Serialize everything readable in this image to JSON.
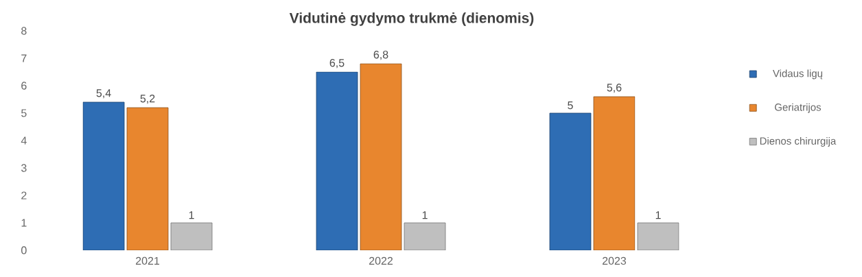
{
  "chart_data": {
    "type": "bar",
    "title": "Vidutinė gydymo trukmė (dienomis)",
    "categories": [
      "2021",
      "2022",
      "2023"
    ],
    "series": [
      {
        "name": "Vidaus ligų",
        "color": "#2e6db4",
        "values": [
          5.4,
          6.5,
          5
        ],
        "value_labels": [
          "5,4",
          "6,5",
          "5"
        ]
      },
      {
        "name": "Geriatrijos",
        "color": "#e8862e",
        "values": [
          5.2,
          6.8,
          5.6
        ],
        "value_labels": [
          "5,2",
          "6,8",
          "5,6"
        ]
      },
      {
        "name": "Dienos chirurgija",
        "color": "#bfbfbf",
        "values": [
          1,
          1,
          1
        ],
        "value_labels": [
          "1",
          "1",
          "1"
        ]
      }
    ],
    "ylim": [
      0,
      8
    ],
    "yticks": [
      0,
      1,
      2,
      3,
      4,
      5,
      6,
      7,
      8
    ],
    "legend": "right",
    "grid": false
  }
}
